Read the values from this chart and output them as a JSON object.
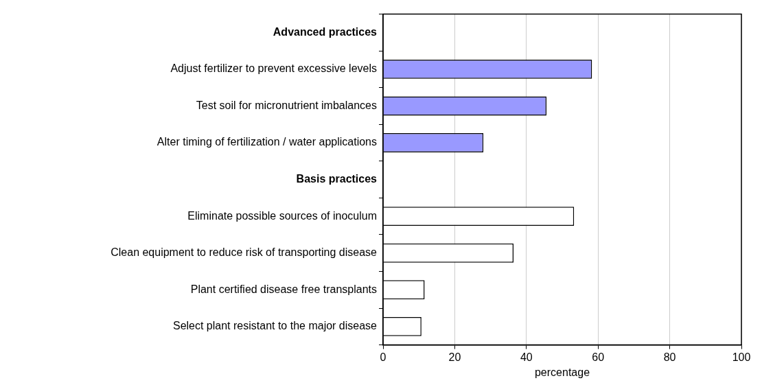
{
  "chart_data": {
    "type": "bar",
    "orientation": "horizontal",
    "xlabel": "percentage",
    "categories": [
      "Advanced practices",
      "Adjust fertilizer to prevent excessive levels",
      "Test soil for micronutrient imbalances",
      "Alter timing of fertilization / water applications",
      "Basis practices",
      "Eliminate possible sources of inoculum",
      "Clean equipment to reduce risk of transporting disease",
      "Plant certified disease free transplants",
      "Select plant resistant to the major disease"
    ],
    "values": [
      null,
      58.3,
      45.6,
      28,
      null,
      53.3,
      36.4,
      11.6,
      10.7
    ],
    "colors": [
      "#9999ff",
      "#9999ff",
      "#9999ff",
      "#9999ff",
      "#ffffff",
      "#ffffff",
      "#ffffff",
      "#ffffff",
      "#ffffff"
    ],
    "xlim": [
      0,
      100
    ],
    "xticks": [
      0,
      20,
      40,
      60,
      80,
      100
    ],
    "grid": "x",
    "legend": false
  }
}
